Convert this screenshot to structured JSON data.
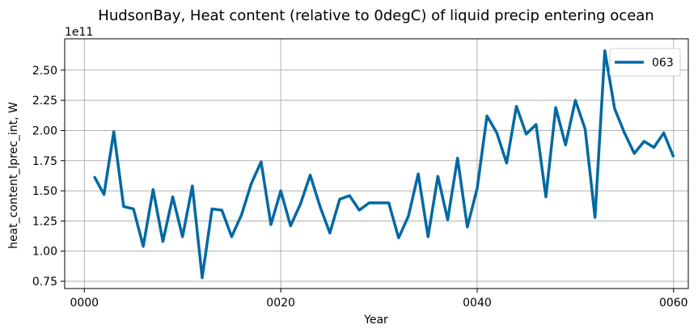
{
  "chart_data": {
    "type": "line",
    "title": "HudsonBay, Heat content (relative to 0degC) of liquid precip entering ocean",
    "xlabel": "Year",
    "ylabel": "heat_content_lprec_int, W",
    "y_offset_label": "1e11",
    "xlim": [
      -2,
      61.5
    ],
    "ylim": [
      0.69,
      2.76
    ],
    "x_ticks": [
      0,
      20,
      40,
      60
    ],
    "x_tick_labels": [
      "0000",
      "0020",
      "0040",
      "0060"
    ],
    "y_ticks": [
      0.75,
      1.0,
      1.25,
      1.5,
      1.75,
      2.0,
      2.25,
      2.5
    ],
    "y_tick_labels": [
      "0.75",
      "1.00",
      "1.25",
      "1.50",
      "1.75",
      "2.00",
      "2.25",
      "2.50"
    ],
    "grid": true,
    "legend_position": "top-right",
    "colors": {
      "series": "#0069a3",
      "grid": "#b0b0b0"
    },
    "series": [
      {
        "name": "063",
        "x": [
          1,
          2,
          3,
          4,
          5,
          6,
          7,
          8,
          9,
          10,
          11,
          12,
          13,
          14,
          15,
          16,
          17,
          18,
          19,
          20,
          21,
          22,
          23,
          24,
          25,
          26,
          27,
          28,
          29,
          30,
          31,
          32,
          33,
          34,
          35,
          36,
          37,
          38,
          39,
          40,
          41,
          42,
          43,
          44,
          45,
          46,
          47,
          48,
          49,
          50,
          51,
          52,
          53,
          54,
          55,
          56,
          57,
          58,
          59,
          60
        ],
        "values": [
          1.62,
          1.47,
          1.99,
          1.37,
          1.35,
          1.04,
          1.51,
          1.08,
          1.45,
          1.12,
          1.54,
          0.78,
          1.35,
          1.34,
          1.12,
          1.3,
          1.56,
          1.74,
          1.22,
          1.5,
          1.21,
          1.39,
          1.63,
          1.37,
          1.15,
          1.43,
          1.46,
          1.34,
          1.4,
          1.4,
          1.4,
          1.11,
          1.29,
          1.64,
          1.12,
          1.62,
          1.26,
          1.77,
          1.2,
          1.52,
          2.12,
          1.98,
          1.73,
          2.2,
          1.97,
          2.05,
          1.45,
          2.19,
          1.88,
          2.25,
          2.01,
          1.28,
          2.66,
          2.18,
          1.98,
          1.81,
          1.91,
          1.86,
          1.98,
          1.78
        ]
      }
    ]
  }
}
